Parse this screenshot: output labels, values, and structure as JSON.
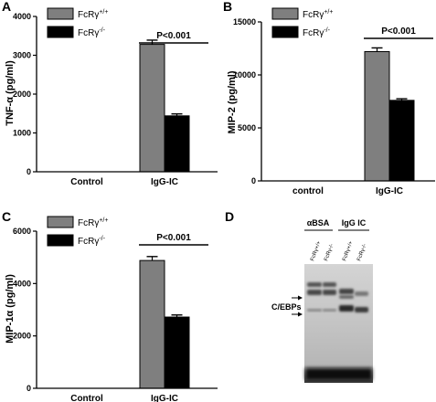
{
  "colors": {
    "wildtype": "#7f7f7f",
    "knockout": "#000000"
  },
  "legend": {
    "wildtype": {
      "base": "FcRγ",
      "sup": "+/+"
    },
    "knockout": {
      "base": "FcRγ",
      "sup": "-/-"
    }
  },
  "chart_data": [
    {
      "panel": "A",
      "type": "bar",
      "ylabel": "TNF-α (pg/ml)",
      "ylim": [
        0,
        4000
      ],
      "yticks": [
        0,
        1000,
        2000,
        3000,
        4000
      ],
      "categories": [
        "Control",
        "IgG-IC"
      ],
      "series": [
        {
          "name": "FcRγ+/+",
          "values": [
            0,
            3280
          ],
          "errors": [
            0,
            110
          ]
        },
        {
          "name": "FcRγ-/-",
          "values": [
            0,
            1440
          ],
          "errors": [
            0,
            50
          ]
        }
      ],
      "annotation": "P<0.001",
      "legend_position": "top-left",
      "grid": false
    },
    {
      "panel": "B",
      "type": "bar",
      "ylabel": "MIP-2 (pg/ml)",
      "ylim": [
        0,
        15000
      ],
      "yticks": [
        0,
        5000,
        10000,
        15000
      ],
      "categories": [
        "control",
        "IgG-IC"
      ],
      "series": [
        {
          "name": "FcRγ+/+",
          "values": [
            0,
            12200
          ],
          "errors": [
            0,
            350
          ]
        },
        {
          "name": "FcRγ-/-",
          "values": [
            0,
            7600
          ],
          "errors": [
            0,
            150
          ]
        }
      ],
      "annotation": "P<0.001",
      "legend_position": "top-left",
      "grid": false
    },
    {
      "panel": "C",
      "type": "bar",
      "ylabel": "MIP-1α (pg/ml)",
      "ylim": [
        0,
        6000
      ],
      "yticks": [
        0,
        2000,
        4000,
        6000
      ],
      "categories": [
        "Control",
        "IgG-IC"
      ],
      "series": [
        {
          "name": "FcRγ+/+",
          "values": [
            0,
            4880
          ],
          "errors": [
            0,
            150
          ]
        },
        {
          "name": "FcRγ-/-",
          "values": [
            0,
            2720
          ],
          "errors": [
            0,
            80
          ]
        }
      ],
      "annotation": "P<0.001",
      "legend_position": "top-left",
      "grid": false
    }
  ],
  "panel_d": {
    "letter": "D",
    "groups": [
      "αBSA",
      "IgG IC"
    ],
    "lanes": [
      "FcRγ+/+",
      "FcRγ-/-",
      "FcRγ+/+",
      "FcRγ-/-"
    ],
    "band_label": "C/EBPs"
  }
}
